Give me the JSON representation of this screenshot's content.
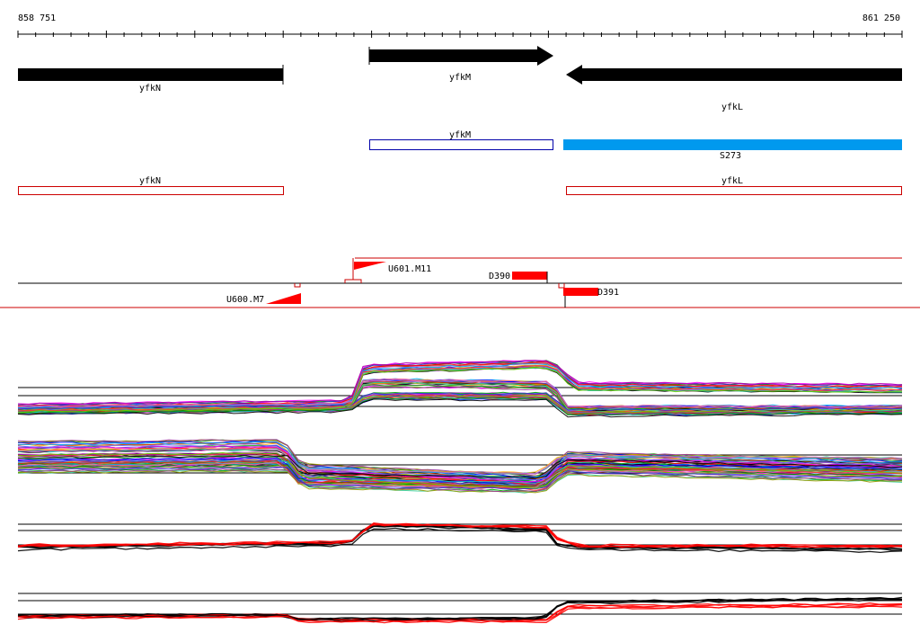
{
  "coords": {
    "start": "858 751",
    "end": "861 250"
  },
  "genes": [
    {
      "name": "yfkN",
      "strand": "+"
    },
    {
      "name": "yfkM",
      "strand": "+"
    },
    {
      "name": "yfkL",
      "strand": "-"
    }
  ],
  "annotation_boxes": [
    {
      "label": "yfkM",
      "color": "#0000aa",
      "filled": false
    },
    {
      "label": "S273",
      "color": "#0099ee",
      "filled": true
    },
    {
      "label": "yfkN",
      "color": "#cc0000",
      "filled": false
    },
    {
      "label": "yfkL",
      "color": "#cc0000",
      "filled": false
    }
  ],
  "features": {
    "upshifts": [
      {
        "label": "U601.M11"
      },
      {
        "label": "U600.M7"
      }
    ],
    "downshifts": [
      {
        "label": "D390"
      },
      {
        "label": "D391"
      }
    ]
  },
  "colors": {
    "gene_arrow": "#000000",
    "feature": "#ff0000",
    "track_line": "#000000",
    "accent_red": "#cc0000",
    "accent_blue": "#0099ee"
  }
}
